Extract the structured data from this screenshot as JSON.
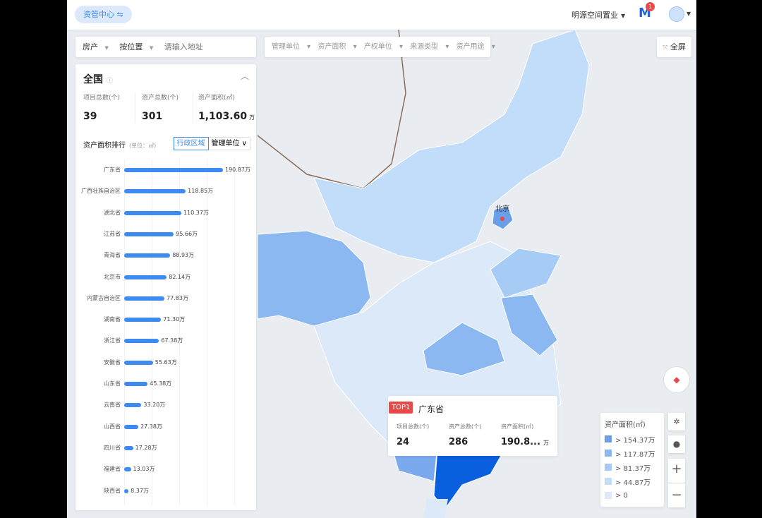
{
  "header": {
    "center_label": "资管中心",
    "switch_icon": "swap-icon",
    "org": "明源空间置业",
    "message_badge": "1"
  },
  "search": {
    "type": "房产",
    "mode": "按位置",
    "placeholder": "请输入地址"
  },
  "filters": [
    "管理单位",
    "资产面积",
    "产权单位",
    "来源类型",
    "资产用途"
  ],
  "fullscreen": "全屏",
  "summary": {
    "title": "全国",
    "stats": [
      {
        "label": "项目总数(个)",
        "value": "39"
      },
      {
        "label": "资产总数(个)",
        "value": "301"
      },
      {
        "label": "资产面积(㎡)",
        "value": "1,103.60",
        "unit": "万"
      }
    ]
  },
  "ranking": {
    "title": "资产面积排行",
    "unit": "(单位：㎡)",
    "tabs": [
      "行政区域",
      "管理单位"
    ],
    "items": [
      {
        "name": "广东省",
        "value": 190.87,
        "label": "190.87万"
      },
      {
        "name": "广西壮族自治区",
        "value": 118.85,
        "label": "118.85万"
      },
      {
        "name": "湖北省",
        "value": 110.37,
        "label": "110.37万"
      },
      {
        "name": "江苏省",
        "value": 95.66,
        "label": "95.66万"
      },
      {
        "name": "青海省",
        "value": 88.93,
        "label": "88.93万"
      },
      {
        "name": "北京市",
        "value": 82.14,
        "label": "82.14万"
      },
      {
        "name": "内蒙古自治区",
        "value": 77.83,
        "label": "77.83万"
      },
      {
        "name": "湖南省",
        "value": 71.3,
        "label": "71.30万"
      },
      {
        "name": "浙江省",
        "value": 67.38,
        "label": "67.38万"
      },
      {
        "name": "安徽省",
        "value": 55.63,
        "label": "55.63万"
      },
      {
        "name": "山东省",
        "value": 45.38,
        "label": "45.38万"
      },
      {
        "name": "云南省",
        "value": 33.2,
        "label": "33.20万"
      },
      {
        "name": "山西省",
        "value": 27.38,
        "label": "27.38万"
      },
      {
        "name": "四川省",
        "value": 17.28,
        "label": "17.28万"
      },
      {
        "name": "福建省",
        "value": 13.03,
        "label": "13.03万"
      },
      {
        "name": "陕西省",
        "value": 8.37,
        "label": "8.37万"
      }
    ]
  },
  "tooltip": {
    "rank": "TOP1",
    "name": "广东省",
    "stats": [
      {
        "label": "项目总数(个)",
        "value": "24"
      },
      {
        "label": "资产总数(个)",
        "value": "286"
      },
      {
        "label": "资产面积(㎡)",
        "value": "190.8...",
        "unit": "万"
      }
    ]
  },
  "map": {
    "capital_label": "北京"
  },
  "legend": {
    "title": "资产面积(㎡)",
    "items": [
      {
        "label": "> 154.37万",
        "color": "#6a9fe8"
      },
      {
        "label": "> 117.87万",
        "color": "#8bb8f0"
      },
      {
        "label": "> 81.37万",
        "color": "#a6cbf5"
      },
      {
        "label": "> 44.87万",
        "color": "#c2ddf9"
      },
      {
        "label": "> 0",
        "color": "#dce9f8"
      }
    ]
  },
  "controls": {
    "zoom_in": "+",
    "zoom_out": "−"
  }
}
